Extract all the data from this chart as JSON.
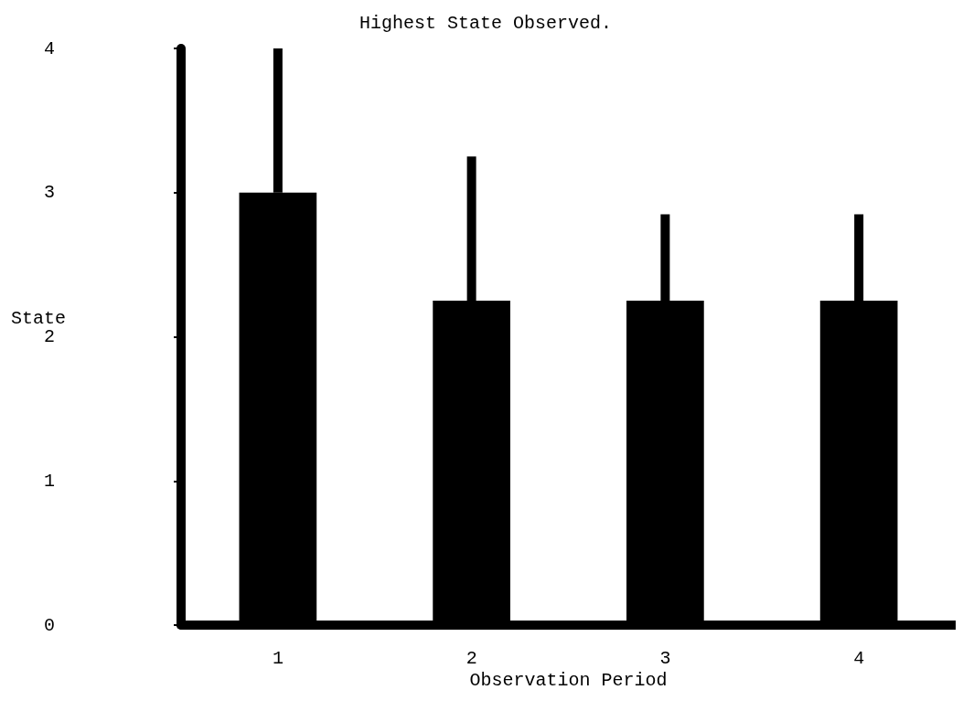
{
  "chart_data": {
    "type": "bar",
    "title": "Highest State Observed.",
    "xlabel": "Observation Period",
    "ylabel": "State",
    "categories": [
      "1",
      "2",
      "3",
      "4"
    ],
    "values": [
      3.0,
      2.25,
      2.25,
      2.25
    ],
    "errors": [
      [
        3.0,
        4.0
      ],
      [
        2.25,
        3.25
      ],
      [
        2.25,
        2.85
      ],
      [
        2.25,
        2.85
      ]
    ],
    "color": "#000000",
    "ylim": [
      0,
      4
    ],
    "yticks": [
      0,
      1,
      2,
      3,
      4
    ],
    "grid": false
  }
}
